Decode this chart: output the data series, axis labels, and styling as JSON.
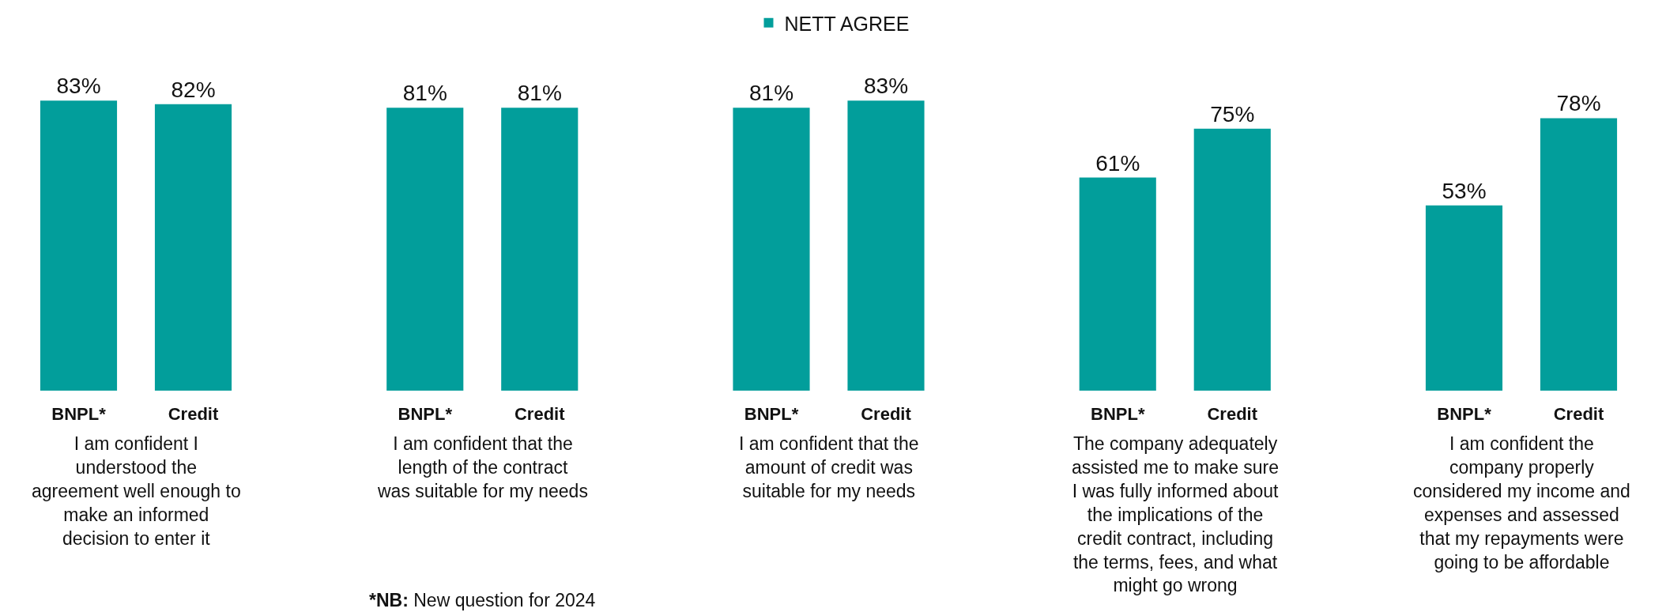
{
  "chart_data": [
    {
      "type": "bar",
      "categories": [
        "BNPL*",
        "Credit"
      ],
      "series": [
        {
          "color": "#029e9b",
          "values": [
            83,
            82
          ],
          "value_labels": [
            "83%",
            "82%"
          ]
        }
      ],
      "xlabel": "I am confident I\nunderstood the\nagreement well enough to\nmake an informed\ndecision to enter it",
      "tick_labels": "x"
    },
    {
      "type": "bar",
      "categories": [
        "BNPL*",
        "Credit"
      ],
      "series": [
        {
          "color": "#029e9b",
          "values": [
            81,
            81
          ],
          "value_labels": [
            "81%",
            "81%"
          ]
        }
      ],
      "xlabel": "I am confident that the\nlength of the contract\nwas suitable for my needs",
      "tick_labels": "x",
      "annotations": [
        "*NB: New question for 2024"
      ]
    },
    {
      "type": "bar",
      "categories": [
        "BNPL*",
        "Credit"
      ],
      "series": [
        {
          "name": "NETT AGREE",
          "color": "#029e9b",
          "values": [
            81,
            83
          ],
          "value_labels": [
            "81%",
            "83%"
          ]
        }
      ],
      "xlabel": "I am confident that the\namount of credit was\nsuitable for my needs",
      "tick_labels": "x",
      "legend": "top"
    },
    {
      "type": "bar",
      "categories": [
        "BNPL*",
        "Credit"
      ],
      "series": [
        {
          "color": "#029e9b",
          "values": [
            61,
            75
          ],
          "value_labels": [
            "61%",
            "75%"
          ]
        }
      ],
      "xlabel": "The company adequately\nassisted me to make sure\nI was fully informed about\nthe implications of the\ncredit contract, including\nthe terms, fees, and what\nmight go wrong",
      "tick_labels": "x"
    },
    {
      "type": "bar",
      "categories": [
        "BNPL*",
        "Credit"
      ],
      "series": [
        {
          "color": "#029e9b",
          "values": [
            53,
            78
          ],
          "value_labels": [
            "53%",
            "78%"
          ]
        }
      ],
      "xlabel": "I am confident the\ncompany properly\nconsidered my income and\nexpenses and assessed\nthat my repayments were\ngoing to be affordable",
      "tick_labels": "x"
    }
  ]
}
